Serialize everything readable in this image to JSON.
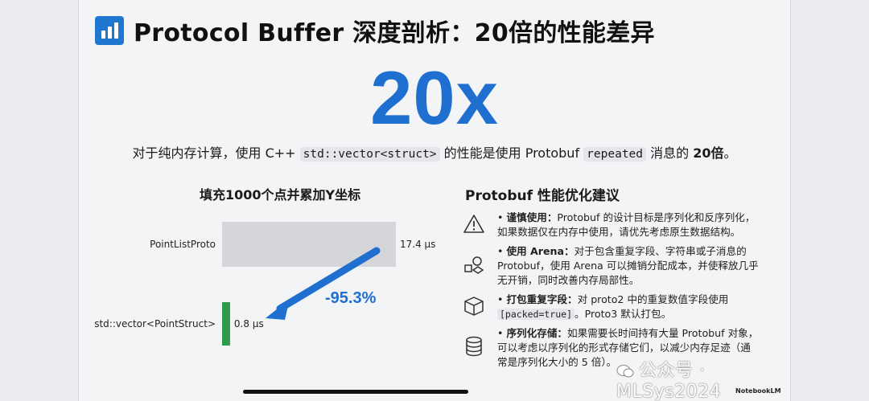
{
  "slide": {
    "title": "Protocol Buffer 深度剖析：20倍的性能差异",
    "big_number": "20x",
    "subline": {
      "part1": "对于纯内存计算，使用 C++ ",
      "code1": "std::vector<struct>",
      "part2": " 的性能是使用 Protobuf ",
      "code2": "repeated",
      "part3": " 消息的 ",
      "bold": "20倍",
      "part4": "。"
    }
  },
  "chart_data": {
    "type": "bar",
    "title": "填充1000个点并累加Y坐标",
    "categories": [
      "PointListProto",
      "std::vector<PointStruct>"
    ],
    "values": [
      17.4,
      0.8
    ],
    "value_labels": [
      "17.4 µs",
      "0.8 µs"
    ],
    "unit": "µs",
    "colors": [
      "#d4d6da",
      "#2e9a4a"
    ],
    "annotation": "-95.3%",
    "annotation_color": "#1f6fd0",
    "xlim": [
      0,
      17.4
    ]
  },
  "tips": {
    "title": "Protobuf 性能优化建议",
    "items": [
      {
        "icon": "warning-icon",
        "label": "谨慎使用：",
        "line1": "Protobuf 的设计目标是序列化和反序列化，",
        "line2": "如果数据仅在内存中使用，请优先考虑原生数据结构。"
      },
      {
        "icon": "arena-icon",
        "label": "使用 Arena：",
        "line1": "对于包含重复字段、字符串或子消息的",
        "line2": "Protobuf，使用 Arena 可以摊销分配成本，并使释放几乎",
        "line3": "无开销，同时改善内存局部性。"
      },
      {
        "icon": "package-icon",
        "label": "打包重复字段：",
        "line1": "对 proto2 中的重复数值字段使用",
        "code": "[packed=true]",
        "line2": "。Proto3 默认打包。"
      },
      {
        "icon": "database-icon",
        "label": "序列化存储：",
        "line1": "如果需要长时间持有大量 Protobuf 对象，",
        "line2": "可以考虑以序列化的形式存储它们，以减少内存足迹（通",
        "line3": "常是序列化大小的 5 倍）。"
      }
    ]
  },
  "watermark": "公众号 · MLSys2024",
  "brand": "NotebookLM",
  "colors": {
    "accent": "#1f6fd0",
    "green": "#2e9a4a",
    "gray_bar": "#d4d6da"
  }
}
